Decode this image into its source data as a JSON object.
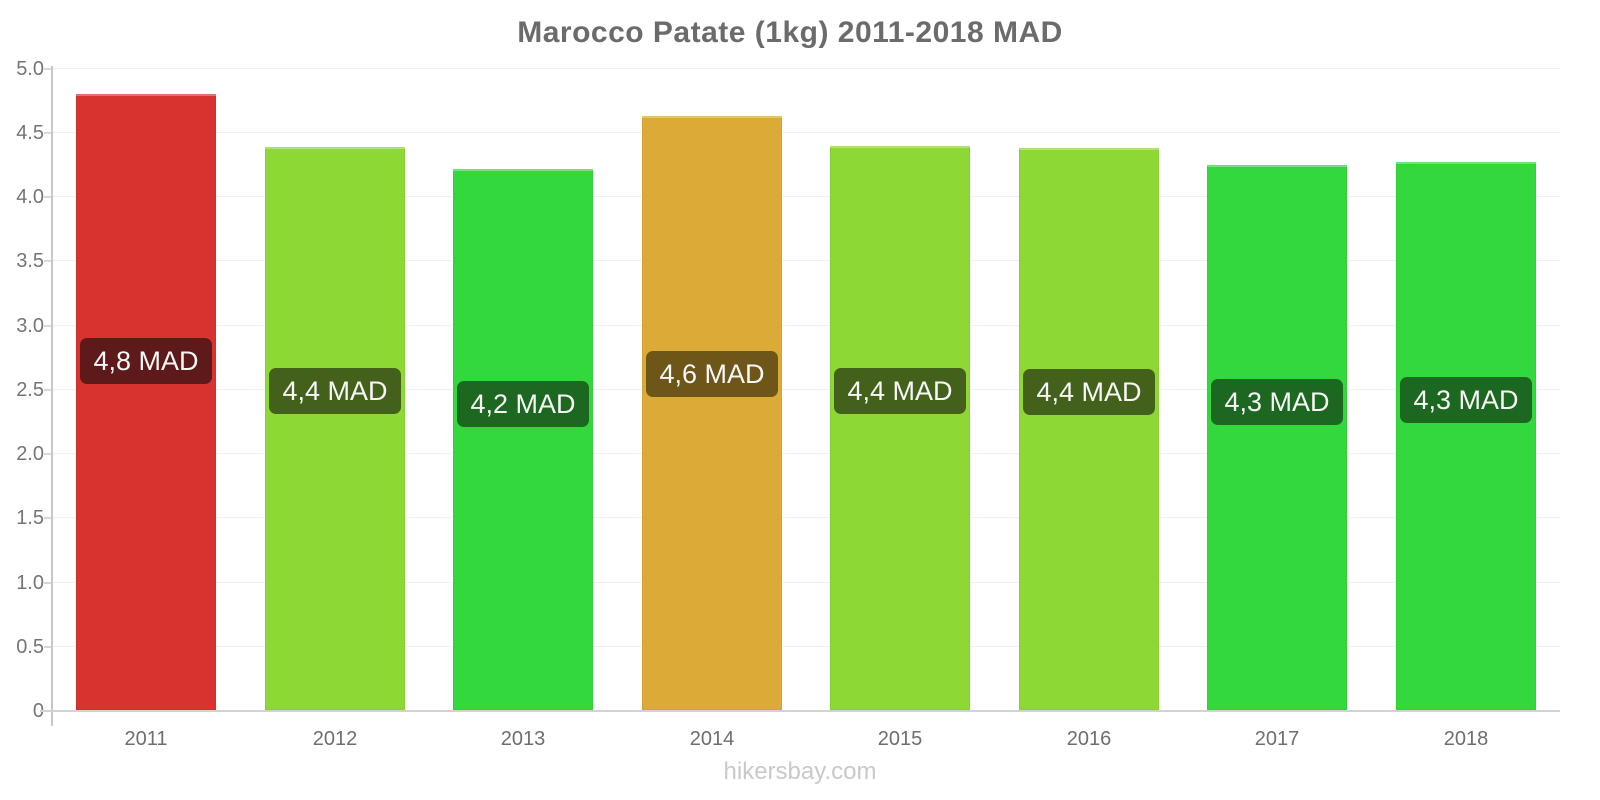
{
  "footer": "hikersbay.com",
  "chart_data": {
    "type": "bar",
    "title": "Marocco Patate (1kg) 2011-2018 MAD",
    "xlabel": "",
    "ylabel": "",
    "categories": [
      "2011",
      "2012",
      "2013",
      "2014",
      "2015",
      "2016",
      "2017",
      "2018"
    ],
    "values": [
      4.8,
      4.39,
      4.22,
      4.63,
      4.4,
      4.38,
      4.25,
      4.27
    ],
    "bar_labels": [
      "4,8 MAD",
      "4,4 MAD",
      "4,2 MAD",
      "4,6 MAD",
      "4,4 MAD",
      "4,4 MAD",
      "4,3 MAD",
      "4,3 MAD"
    ],
    "bar_colors": [
      "#d9332f",
      "#8dd835",
      "#33d83c",
      "#dcaa36",
      "#8dd835",
      "#8dd835",
      "#33d83c",
      "#33d83c"
    ],
    "badge_colors": [
      "#5e1a1a",
      "#44611b",
      "#1d6821",
      "#6d5618",
      "#44611b",
      "#44611b",
      "#1d6821",
      "#1d6821"
    ],
    "ylim": [
      0,
      5
    ],
    "yticks": [
      0,
      0.5,
      1.0,
      1.5,
      2.0,
      2.5,
      3.0,
      3.5,
      4.0,
      4.5,
      5.0
    ],
    "ytick_labels": [
      "0",
      "0.5",
      "1.0",
      "1.5",
      "2.0",
      "2.5",
      "3.0",
      "3.5",
      "4.0",
      "4.5",
      "5.0"
    ],
    "grid": true,
    "legend": false,
    "currency": "MAD"
  }
}
